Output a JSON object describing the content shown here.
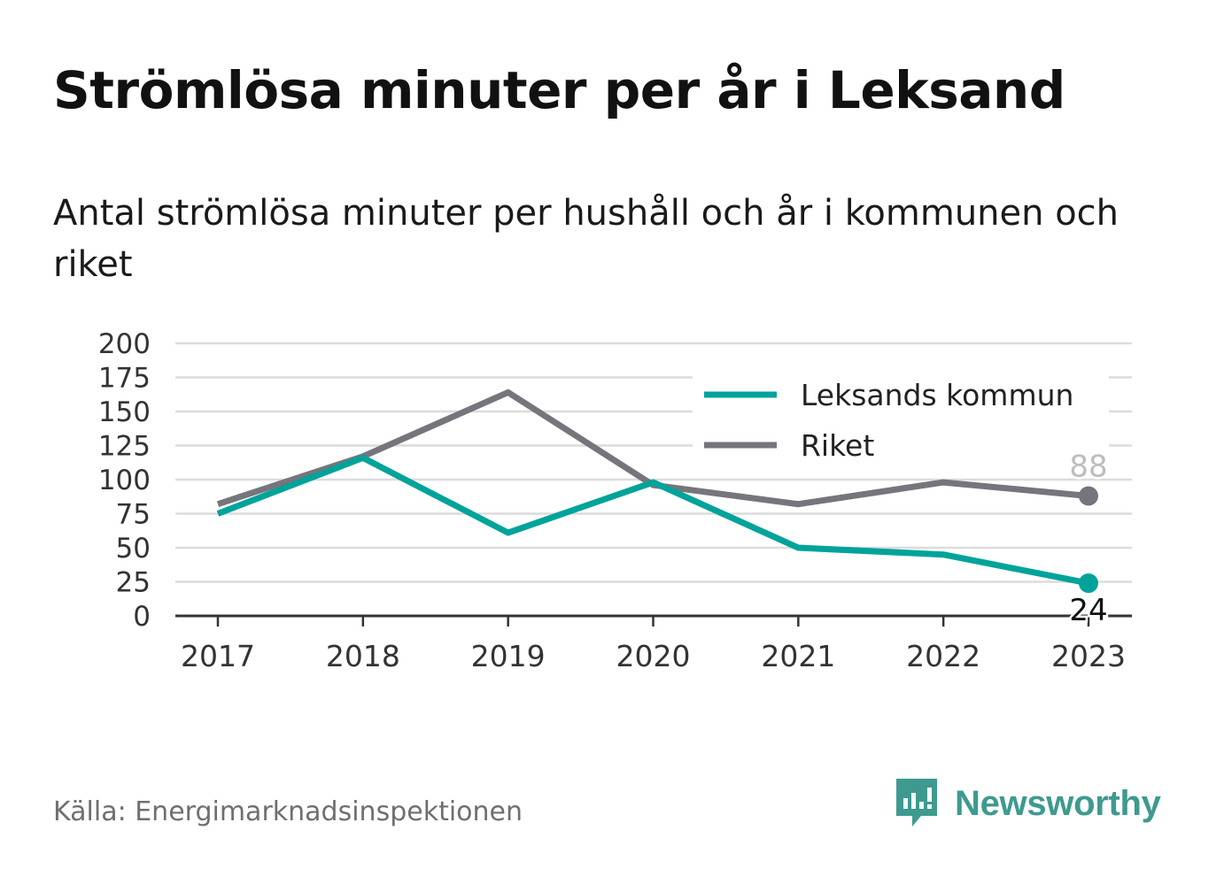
{
  "title": "Strömlösa minuter per år i Leksand",
  "subtitle": "Antal strömlösa minuter per hushåll och år i kommunen och riket",
  "source": "Källa: Energimarknadsinspektionen",
  "brand": {
    "name": "Newsworthy",
    "icon": "newsworthy-logo-icon",
    "color": "#3e9a8f"
  },
  "colors": {
    "leksand": "#00a39a",
    "riket": "#76757c",
    "grid": "#dcdcdc",
    "axis": "#333333"
  },
  "chart_data": {
    "type": "line",
    "title": "Strömlösa minuter per år i Leksand",
    "xlabel": "",
    "ylabel": "",
    "categories": [
      "2017",
      "2018",
      "2019",
      "2020",
      "2021",
      "2022",
      "2023"
    ],
    "ylim": [
      0,
      200
    ],
    "yticks": [
      "0",
      "25",
      "50",
      "75",
      "100",
      "125",
      "150",
      "175",
      "200"
    ],
    "grid": true,
    "legend": "top-right",
    "series": [
      {
        "name": "Leksands kommun",
        "values": [
          75,
          116,
          61,
          98,
          50,
          45,
          24
        ],
        "end_label": "24"
      },
      {
        "name": "Riket",
        "values": [
          82,
          117,
          164,
          96,
          82,
          98,
          88
        ],
        "end_label": "88"
      }
    ]
  }
}
